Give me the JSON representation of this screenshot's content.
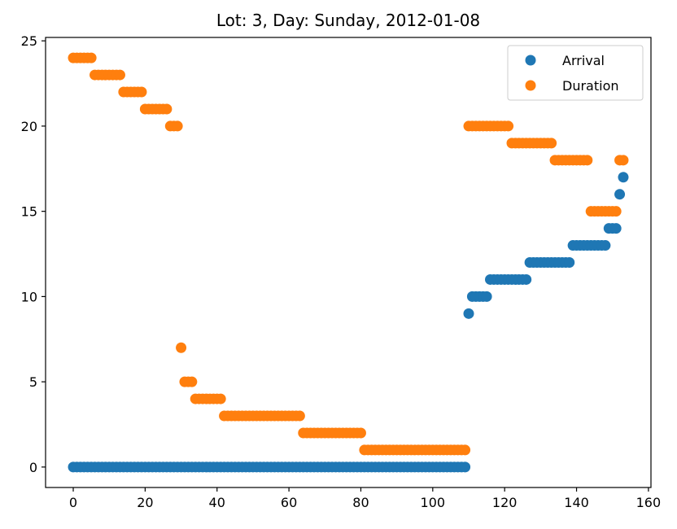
{
  "chart_data": {
    "type": "scatter",
    "title": "Lot: 3, Day: Sunday, 2012-01-08",
    "xlabel": "",
    "ylabel": "",
    "xlim": [
      -7.7,
      160.7
    ],
    "ylim": [
      -1.2,
      25.2
    ],
    "xticks": [
      0,
      20,
      40,
      60,
      80,
      100,
      120,
      140,
      160
    ],
    "yticks": [
      0,
      5,
      10,
      15,
      20,
      25
    ],
    "grid": false,
    "legend": "top-right",
    "series": [
      {
        "name": "Arrival",
        "color": "#1f77b4",
        "runs": [
          {
            "x_start": 0,
            "x_end": 109,
            "y": 0
          },
          {
            "x_start": 110,
            "x_end": 110,
            "y": 9
          },
          {
            "x_start": 111,
            "x_end": 115,
            "y": 10
          },
          {
            "x_start": 116,
            "x_end": 126,
            "y": 11
          },
          {
            "x_start": 127,
            "x_end": 138,
            "y": 12
          },
          {
            "x_start": 139,
            "x_end": 148,
            "y": 13
          },
          {
            "x_start": 149,
            "x_end": 151,
            "y": 14
          },
          {
            "x_start": 152,
            "x_end": 152,
            "y": 16
          },
          {
            "x_start": 153,
            "x_end": 153,
            "y": 17
          }
        ]
      },
      {
        "name": "Duration",
        "color": "#ff7f0e",
        "runs": [
          {
            "x_start": 0,
            "x_end": 5,
            "y": 24
          },
          {
            "x_start": 6,
            "x_end": 13,
            "y": 23
          },
          {
            "x_start": 14,
            "x_end": 19,
            "y": 22
          },
          {
            "x_start": 20,
            "x_end": 26,
            "y": 21
          },
          {
            "x_start": 27,
            "x_end": 29,
            "y": 20
          },
          {
            "x_start": 30,
            "x_end": 30,
            "y": 7
          },
          {
            "x_start": 31,
            "x_end": 33,
            "y": 5
          },
          {
            "x_start": 34,
            "x_end": 41,
            "y": 4
          },
          {
            "x_start": 42,
            "x_end": 63,
            "y": 3
          },
          {
            "x_start": 64,
            "x_end": 80,
            "y": 2
          },
          {
            "x_start": 81,
            "x_end": 109,
            "y": 1
          },
          {
            "x_start": 110,
            "x_end": 121,
            "y": 20
          },
          {
            "x_start": 122,
            "x_end": 133,
            "y": 19
          },
          {
            "x_start": 134,
            "x_end": 143,
            "y": 18
          },
          {
            "x_start": 144,
            "x_end": 151,
            "y": 15
          },
          {
            "x_start": 152,
            "x_end": 153,
            "y": 18
          }
        ]
      }
    ]
  }
}
